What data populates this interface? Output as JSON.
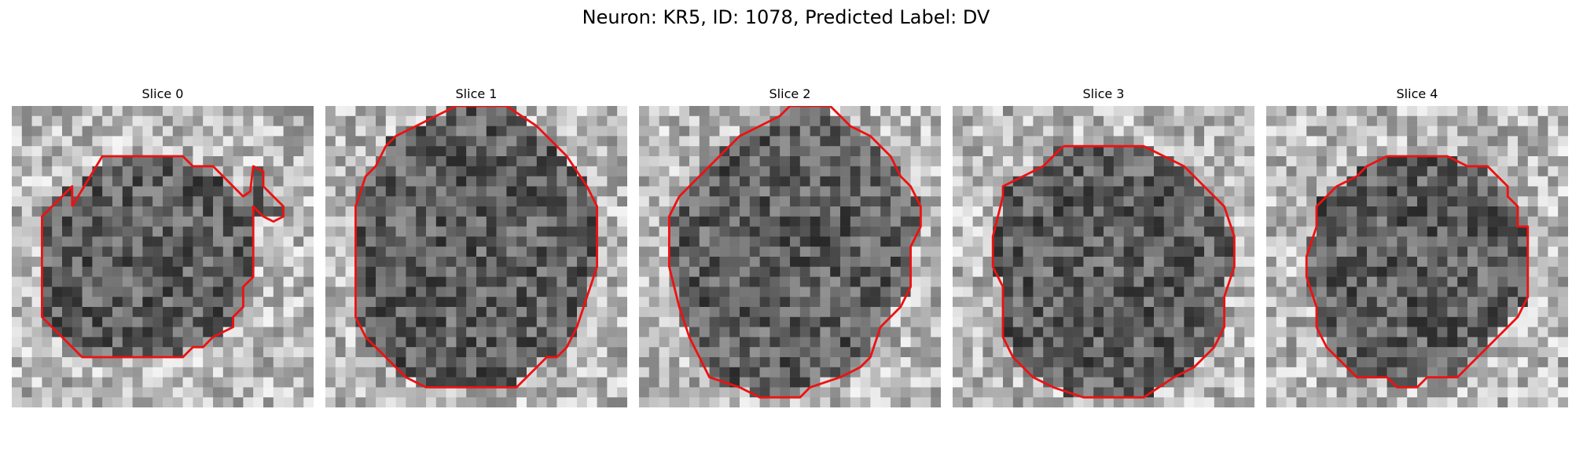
{
  "figure": {
    "title": "Neuron: KR5, ID: 1078, Predicted Label: DV"
  },
  "colors": {
    "contour": "#ee1111",
    "background": "#ffffff"
  },
  "panels": [
    {
      "title": "Slice 0"
    },
    {
      "title": "Slice 1"
    },
    {
      "title": "Slice 2"
    },
    {
      "title": "Slice 3"
    },
    {
      "title": "Slice 4"
    }
  ]
}
